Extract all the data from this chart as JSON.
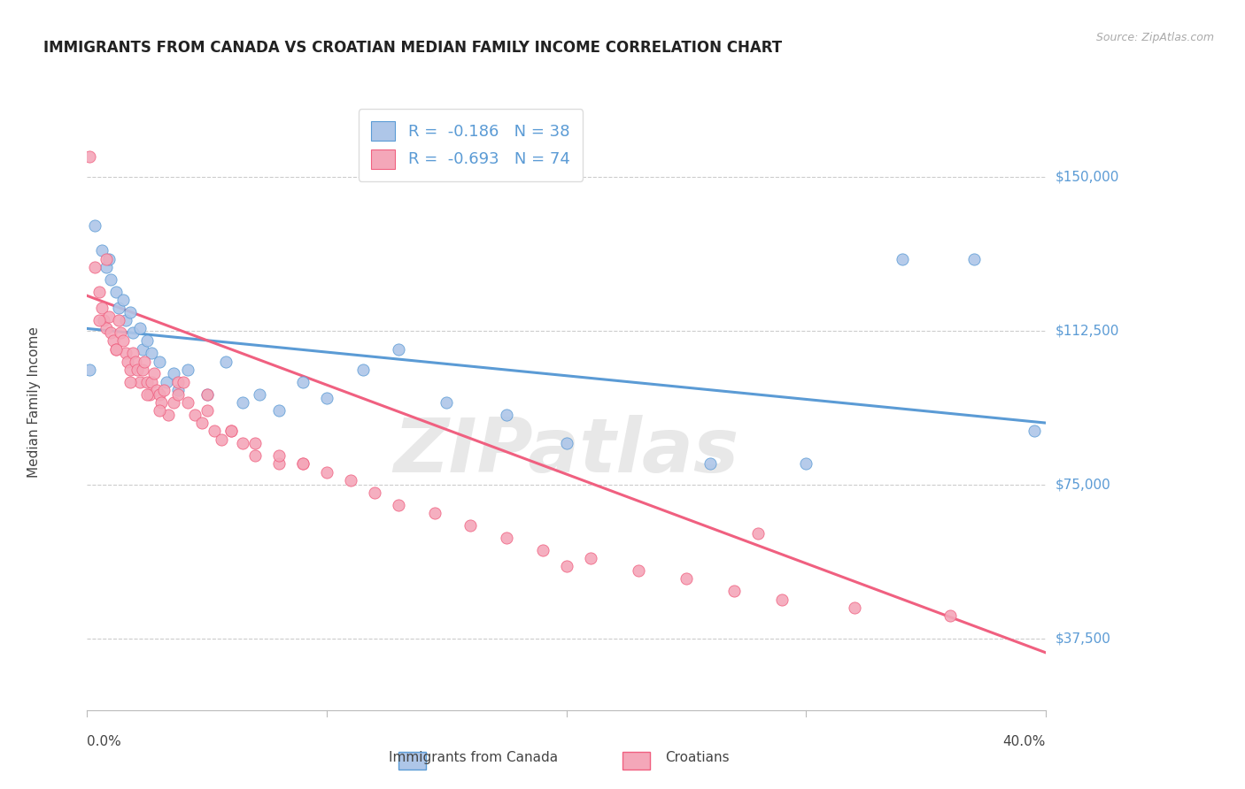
{
  "title": "IMMIGRANTS FROM CANADA VS CROATIAN MEDIAN FAMILY INCOME CORRELATION CHART",
  "source": "Source: ZipAtlas.com",
  "ylabel": "Median Family Income",
  "ytick_vals": [
    37500,
    75000,
    112500,
    150000
  ],
  "ytick_labels": [
    "$37,500",
    "$75,000",
    "$112,500",
    "$150,000"
  ],
  "xlim": [
    0.0,
    0.4
  ],
  "ylim": [
    20000,
    170000
  ],
  "legend_label1": "R =  -0.186   N = 38",
  "legend_label2": "R =  -0.693   N = 74",
  "blue_color": "#5b9bd5",
  "pink_color": "#f06080",
  "blue_marker_color": "#aec6e8",
  "pink_marker_color": "#f4a7b9",
  "axis_label_color": "#5b9bd5",
  "watermark": "ZIPatlas",
  "blue_line_x": [
    0.0,
    0.4
  ],
  "blue_line_y": [
    113000,
    90000
  ],
  "pink_line_x": [
    0.0,
    0.4
  ],
  "pink_line_y": [
    121000,
    34000
  ],
  "canada_x": [
    0.001,
    0.003,
    0.006,
    0.008,
    0.009,
    0.01,
    0.012,
    0.013,
    0.015,
    0.016,
    0.018,
    0.019,
    0.022,
    0.023,
    0.025,
    0.027,
    0.03,
    0.033,
    0.036,
    0.038,
    0.042,
    0.05,
    0.058,
    0.065,
    0.072,
    0.08,
    0.09,
    0.1,
    0.115,
    0.13,
    0.15,
    0.175,
    0.2,
    0.26,
    0.3,
    0.34,
    0.37,
    0.395
  ],
  "canada_y": [
    103000,
    138000,
    132000,
    128000,
    130000,
    125000,
    122000,
    118000,
    120000,
    115000,
    117000,
    112000,
    113000,
    108000,
    110000,
    107000,
    105000,
    100000,
    102000,
    98000,
    103000,
    97000,
    105000,
    95000,
    97000,
    93000,
    100000,
    96000,
    103000,
    108000,
    95000,
    92000,
    85000,
    80000,
    80000,
    130000,
    130000,
    88000
  ],
  "croatian_x": [
    0.001,
    0.003,
    0.005,
    0.006,
    0.007,
    0.008,
    0.009,
    0.01,
    0.011,
    0.012,
    0.013,
    0.014,
    0.015,
    0.016,
    0.017,
    0.018,
    0.019,
    0.02,
    0.021,
    0.022,
    0.023,
    0.024,
    0.025,
    0.026,
    0.027,
    0.028,
    0.029,
    0.03,
    0.031,
    0.032,
    0.034,
    0.036,
    0.038,
    0.04,
    0.042,
    0.045,
    0.048,
    0.05,
    0.053,
    0.056,
    0.06,
    0.065,
    0.07,
    0.08,
    0.09,
    0.1,
    0.11,
    0.12,
    0.13,
    0.145,
    0.16,
    0.175,
    0.19,
    0.21,
    0.23,
    0.25,
    0.27,
    0.29,
    0.32,
    0.36,
    0.005,
    0.008,
    0.012,
    0.018,
    0.025,
    0.03,
    0.038,
    0.05,
    0.06,
    0.07,
    0.08,
    0.09,
    0.2,
    0.28
  ],
  "croatian_y": [
    155000,
    128000,
    122000,
    118000,
    115000,
    113000,
    116000,
    112000,
    110000,
    108000,
    115000,
    112000,
    110000,
    107000,
    105000,
    103000,
    107000,
    105000,
    103000,
    100000,
    103000,
    105000,
    100000,
    97000,
    100000,
    102000,
    98000,
    97000,
    95000,
    98000,
    92000,
    95000,
    100000,
    100000,
    95000,
    92000,
    90000,
    97000,
    88000,
    86000,
    88000,
    85000,
    82000,
    80000,
    80000,
    78000,
    76000,
    73000,
    70000,
    68000,
    65000,
    62000,
    59000,
    57000,
    54000,
    52000,
    49000,
    47000,
    45000,
    43000,
    115000,
    130000,
    108000,
    100000,
    97000,
    93000,
    97000,
    93000,
    88000,
    85000,
    82000,
    80000,
    55000,
    63000
  ],
  "bottom_label1": "Immigrants from Canada",
  "bottom_label2": "Croatians"
}
